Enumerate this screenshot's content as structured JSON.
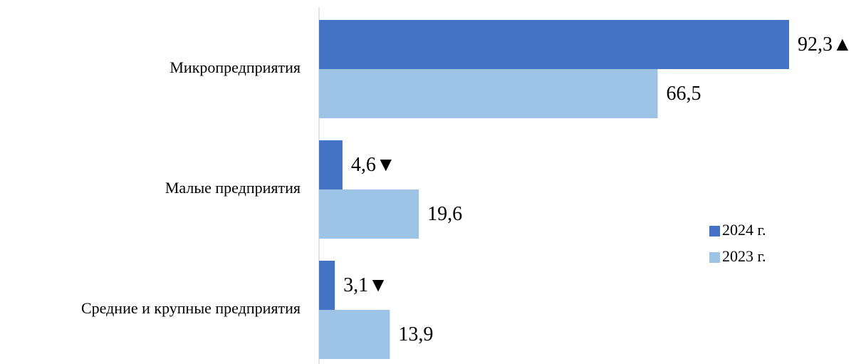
{
  "chart_data": {
    "type": "bar",
    "categories": [
      "Микропредприятия",
      "Малые предприятия",
      "Средние и крупные предприятия"
    ],
    "series": [
      {
        "name": "2024 г.",
        "color": "#4472c4",
        "values": [
          92.3,
          4.6,
          3.1
        ],
        "value_labels": [
          "92,3▲",
          "4,6▼",
          "3,1▼"
        ]
      },
      {
        "name": "2023 г.",
        "color": "#9dc3e6",
        "values": [
          66.5,
          19.6,
          13.9
        ],
        "value_labels": [
          "66,5",
          "19,6",
          "13,9"
        ]
      }
    ]
  }
}
